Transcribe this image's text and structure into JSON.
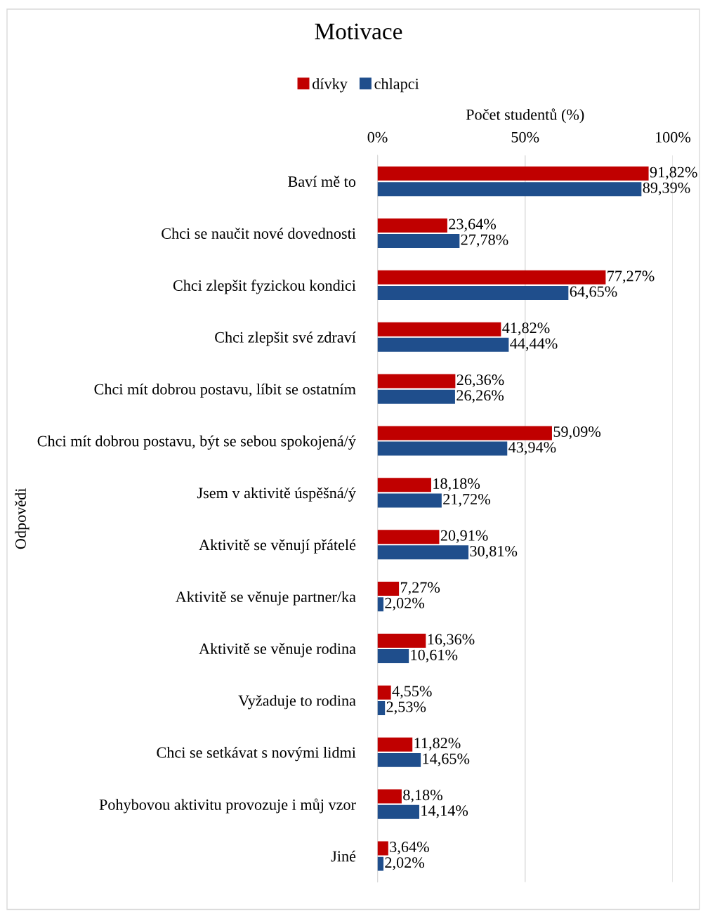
{
  "chart_data": {
    "type": "bar",
    "orientation": "horizontal",
    "title": "Motivace",
    "xlabel": "Počet studentů (%)",
    "ylabel": "Odpovědi",
    "categories": [
      "Baví mě to",
      "Chci se naučit nové dovednosti",
      "Chci zlepšit fyzickou kondici",
      "Chci zlepšit své zdraví",
      "Chci mít dobrou postavu, líbit se ostatním",
      "Chci mít dobrou postavu, být se sebou spokojená/ý",
      "Jsem v aktivitě úspěšná/ý",
      "Aktivitě se věnují přátelé",
      "Aktivitě se věnuje partner/ka",
      "Aktivitě se věnuje rodina",
      "Vyžaduje to rodina",
      "Chci se setkávat s novými lidmi",
      "Pohybovou aktivitu provozuje i můj vzor",
      "Jiné"
    ],
    "series": [
      {
        "name": "dívky",
        "color": "#c00000",
        "values": [
          91.82,
          23.64,
          77.27,
          41.82,
          26.36,
          59.09,
          18.18,
          20.91,
          7.27,
          16.36,
          4.55,
          11.82,
          8.18,
          3.64
        ],
        "value_labels": [
          "91,82%",
          "23,64%",
          "77,27%",
          "41,82%",
          "26,36%",
          "59,09%",
          "18,18%",
          "20,91%",
          "7,27%",
          "16,36%",
          "4,55%",
          "11,82%",
          "8,18%",
          "3,64%"
        ]
      },
      {
        "name": "chlapci",
        "color": "#1f4e8c",
        "values": [
          89.39,
          27.78,
          64.65,
          44.44,
          26.26,
          43.94,
          21.72,
          30.81,
          2.02,
          10.61,
          2.53,
          14.65,
          14.14,
          2.02
        ],
        "value_labels": [
          "89,39%",
          "27,78%",
          "64,65%",
          "44,44%",
          "26,26%",
          "43,94%",
          "21,72%",
          "30,81%",
          "2,02%",
          "10,61%",
          "2,53%",
          "14,65%",
          "14,14%",
          "2,02%"
        ]
      }
    ],
    "xlim": [
      0,
      100
    ],
    "xticks": [
      {
        "value": 0,
        "label": "0%"
      },
      {
        "value": 50,
        "label": "50%"
      },
      {
        "value": 100,
        "label": "100%"
      }
    ],
    "grid": "x",
    "legend": "top"
  }
}
